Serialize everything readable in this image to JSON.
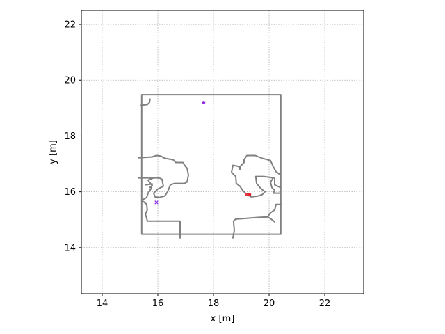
{
  "chart_data": {
    "type": "scatter",
    "title": "",
    "xlabel": "x [m]",
    "ylabel": "y [m]",
    "xlim": [
      13.25,
      23.4
    ],
    "ylim": [
      12.35,
      22.5
    ],
    "xticks": [
      14,
      16,
      18,
      20,
      22
    ],
    "yticks": [
      14,
      16,
      18,
      20,
      22
    ],
    "grid": true,
    "colors": {
      "map": "#808080",
      "purple": "#8a2be2",
      "red": "#e8202a",
      "grid": "#b0b0b0"
    },
    "map_polylines": [
      [
        [
          15.42,
          14.48
        ],
        [
          15.42,
          19.48
        ],
        [
          20.42,
          19.48
        ],
        [
          20.42,
          14.48
        ],
        [
          15.42,
          14.48
        ]
      ],
      [
        [
          16.8,
          14.48
        ],
        [
          16.8,
          14.35
        ]
      ],
      [
        [
          15.4,
          19.1
        ],
        [
          15.62,
          19.12
        ],
        [
          15.7,
          19.2
        ],
        [
          15.72,
          19.32
        ]
      ],
      [
        [
          15.3,
          17.22
        ],
        [
          15.8,
          17.25
        ],
        [
          15.95,
          17.3
        ],
        [
          16.1,
          17.28
        ],
        [
          16.25,
          17.2
        ],
        [
          16.55,
          17.15
        ],
        [
          16.65,
          17.05
        ],
        [
          16.9,
          17.05
        ],
        [
          17.0,
          16.9
        ],
        [
          17.05,
          16.85
        ],
        [
          17.1,
          16.6
        ],
        [
          17.05,
          16.35
        ],
        [
          16.95,
          16.3
        ],
        [
          16.6,
          16.3
        ],
        [
          16.45,
          16.25
        ],
        [
          16.35,
          16.0
        ],
        [
          16.25,
          15.85
        ],
        [
          16.05,
          15.8
        ],
        [
          15.9,
          15.82
        ],
        [
          15.85,
          15.95
        ],
        [
          16.0,
          16.1
        ],
        [
          16.2,
          16.2
        ],
        [
          16.15,
          16.45
        ],
        [
          16.05,
          16.5
        ],
        [
          15.85,
          16.5
        ],
        [
          15.65,
          16.42
        ],
        [
          15.75,
          16.28
        ],
        [
          15.8,
          16.22
        ],
        [
          15.7,
          16.15
        ]
      ],
      [
        [
          15.3,
          16.5
        ],
        [
          15.55,
          16.5
        ],
        [
          15.75,
          16.5
        ]
      ],
      [
        [
          15.55,
          16.25
        ],
        [
          15.8,
          16.28
        ],
        [
          15.75,
          16.1
        ],
        [
          15.65,
          15.95
        ],
        [
          15.6,
          15.8
        ],
        [
          15.42,
          15.7
        ],
        [
          15.6,
          15.55
        ],
        [
          15.62,
          15.35
        ],
        [
          15.55,
          15.2
        ],
        [
          15.6,
          15.05
        ],
        [
          15.62,
          14.95
        ],
        [
          15.8,
          14.95
        ],
        [
          16.8,
          14.95
        ],
        [
          16.8,
          14.35
        ]
      ],
      [
        [
          18.7,
          14.35
        ],
        [
          18.75,
          14.62
        ],
        [
          18.72,
          14.95
        ],
        [
          18.8,
          15.02
        ],
        [
          19.2,
          15.05
        ],
        [
          19.6,
          15.08
        ],
        [
          19.95,
          15.1
        ],
        [
          20.1,
          15.0
        ],
        [
          20.2,
          14.92
        ]
      ],
      [
        [
          19.95,
          15.1
        ],
        [
          20.05,
          15.25
        ],
        [
          20.2,
          15.35
        ],
        [
          20.25,
          15.55
        ],
        [
          20.45,
          15.55
        ]
      ],
      [
        [
          18.95,
          16.8
        ],
        [
          18.95,
          16.9
        ],
        [
          18.7,
          16.95
        ],
        [
          18.65,
          16.7
        ],
        [
          18.8,
          16.55
        ],
        [
          18.82,
          16.3
        ],
        [
          18.95,
          16.2
        ],
        [
          19.05,
          16.05
        ],
        [
          19.22,
          15.88
        ],
        [
          19.3,
          15.85
        ],
        [
          19.35,
          15.82
        ],
        [
          19.6,
          15.85
        ],
        [
          19.75,
          15.9
        ],
        [
          19.85,
          16.0
        ],
        [
          19.7,
          16.12
        ],
        [
          19.55,
          16.3
        ],
        [
          19.52,
          16.55
        ],
        [
          19.8,
          16.55
        ],
        [
          20.15,
          16.5
        ],
        [
          20.05,
          16.35
        ],
        [
          20.1,
          16.15
        ],
        [
          20.2,
          16.05
        ],
        [
          20.15,
          15.95
        ],
        [
          20.4,
          15.95
        ]
      ],
      [
        [
          20.42,
          16.6
        ],
        [
          20.25,
          16.72
        ],
        [
          20.15,
          16.9
        ],
        [
          20.05,
          17.12
        ],
        [
          19.95,
          17.15
        ],
        [
          19.75,
          17.2
        ],
        [
          19.5,
          17.3
        ],
        [
          19.2,
          17.3
        ],
        [
          19.1,
          17.15
        ],
        [
          19.1,
          17.05
        ],
        [
          18.95,
          16.9
        ]
      ],
      [
        [
          20.2,
          16.5
        ],
        [
          20.2,
          16.25
        ],
        [
          20.3,
          16.2
        ],
        [
          20.42,
          16.15
        ]
      ]
    ],
    "series": [
      {
        "marker": "dot",
        "color": "#8a2be2",
        "points": [
          [
            17.65,
            19.2
          ]
        ]
      },
      {
        "marker": "x",
        "color": "#8a2be2",
        "points": [
          [
            15.95,
            15.62
          ]
        ]
      },
      {
        "marker": "x",
        "color": "#e8202a",
        "points": [
          [
            19.18,
            15.9
          ]
        ]
      },
      {
        "marker": "dot",
        "color": "#e8202a",
        "points": [
          [
            19.3,
            15.9
          ]
        ]
      }
    ]
  }
}
